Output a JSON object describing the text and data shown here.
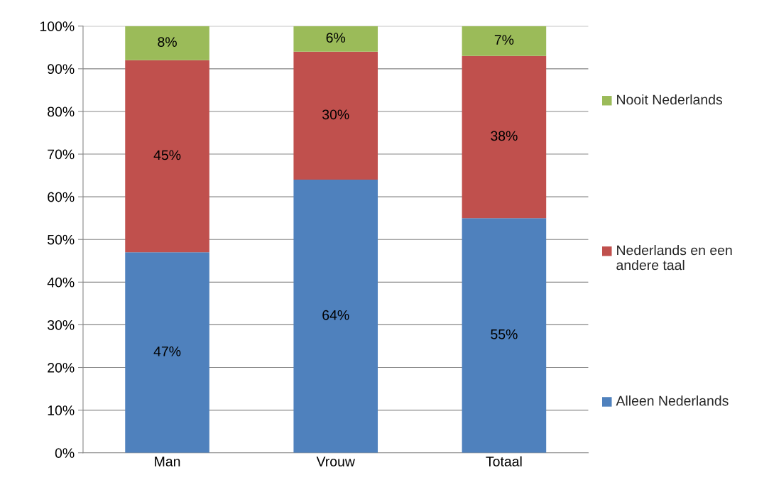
{
  "chart_data": {
    "type": "bar",
    "stacked": true,
    "categories": [
      "Man",
      "Vrouw",
      "Totaal"
    ],
    "series": [
      {
        "name": "Alleen Nederlands",
        "color": "#4f81bd",
        "values": [
          47,
          64,
          55
        ],
        "value_labels": [
          "47%",
          "64%",
          "55%"
        ]
      },
      {
        "name": "Nederlands en een andere taal",
        "color": "#c0504d",
        "values": [
          45,
          30,
          38
        ],
        "value_labels": [
          "45%",
          "30%",
          "38%"
        ]
      },
      {
        "name": "Nooit Nederlands",
        "color": "#9bbb59",
        "values": [
          8,
          6,
          7
        ],
        "value_labels": [
          "8%",
          "6%",
          "7%"
        ]
      }
    ],
    "ylim": [
      0,
      100
    ],
    "yticks": [
      {
        "value": 0,
        "label": "0%"
      },
      {
        "value": 10,
        "label": "10%"
      },
      {
        "value": 20,
        "label": "20%"
      },
      {
        "value": 30,
        "label": "30%"
      },
      {
        "value": 40,
        "label": "40%"
      },
      {
        "value": 50,
        "label": "50%"
      },
      {
        "value": 60,
        "label": "60%"
      },
      {
        "value": 70,
        "label": "70%"
      },
      {
        "value": 80,
        "label": "80%"
      },
      {
        "value": 90,
        "label": "90%"
      },
      {
        "value": 100,
        "label": "100%"
      }
    ],
    "grid": "y",
    "legend": "right"
  }
}
